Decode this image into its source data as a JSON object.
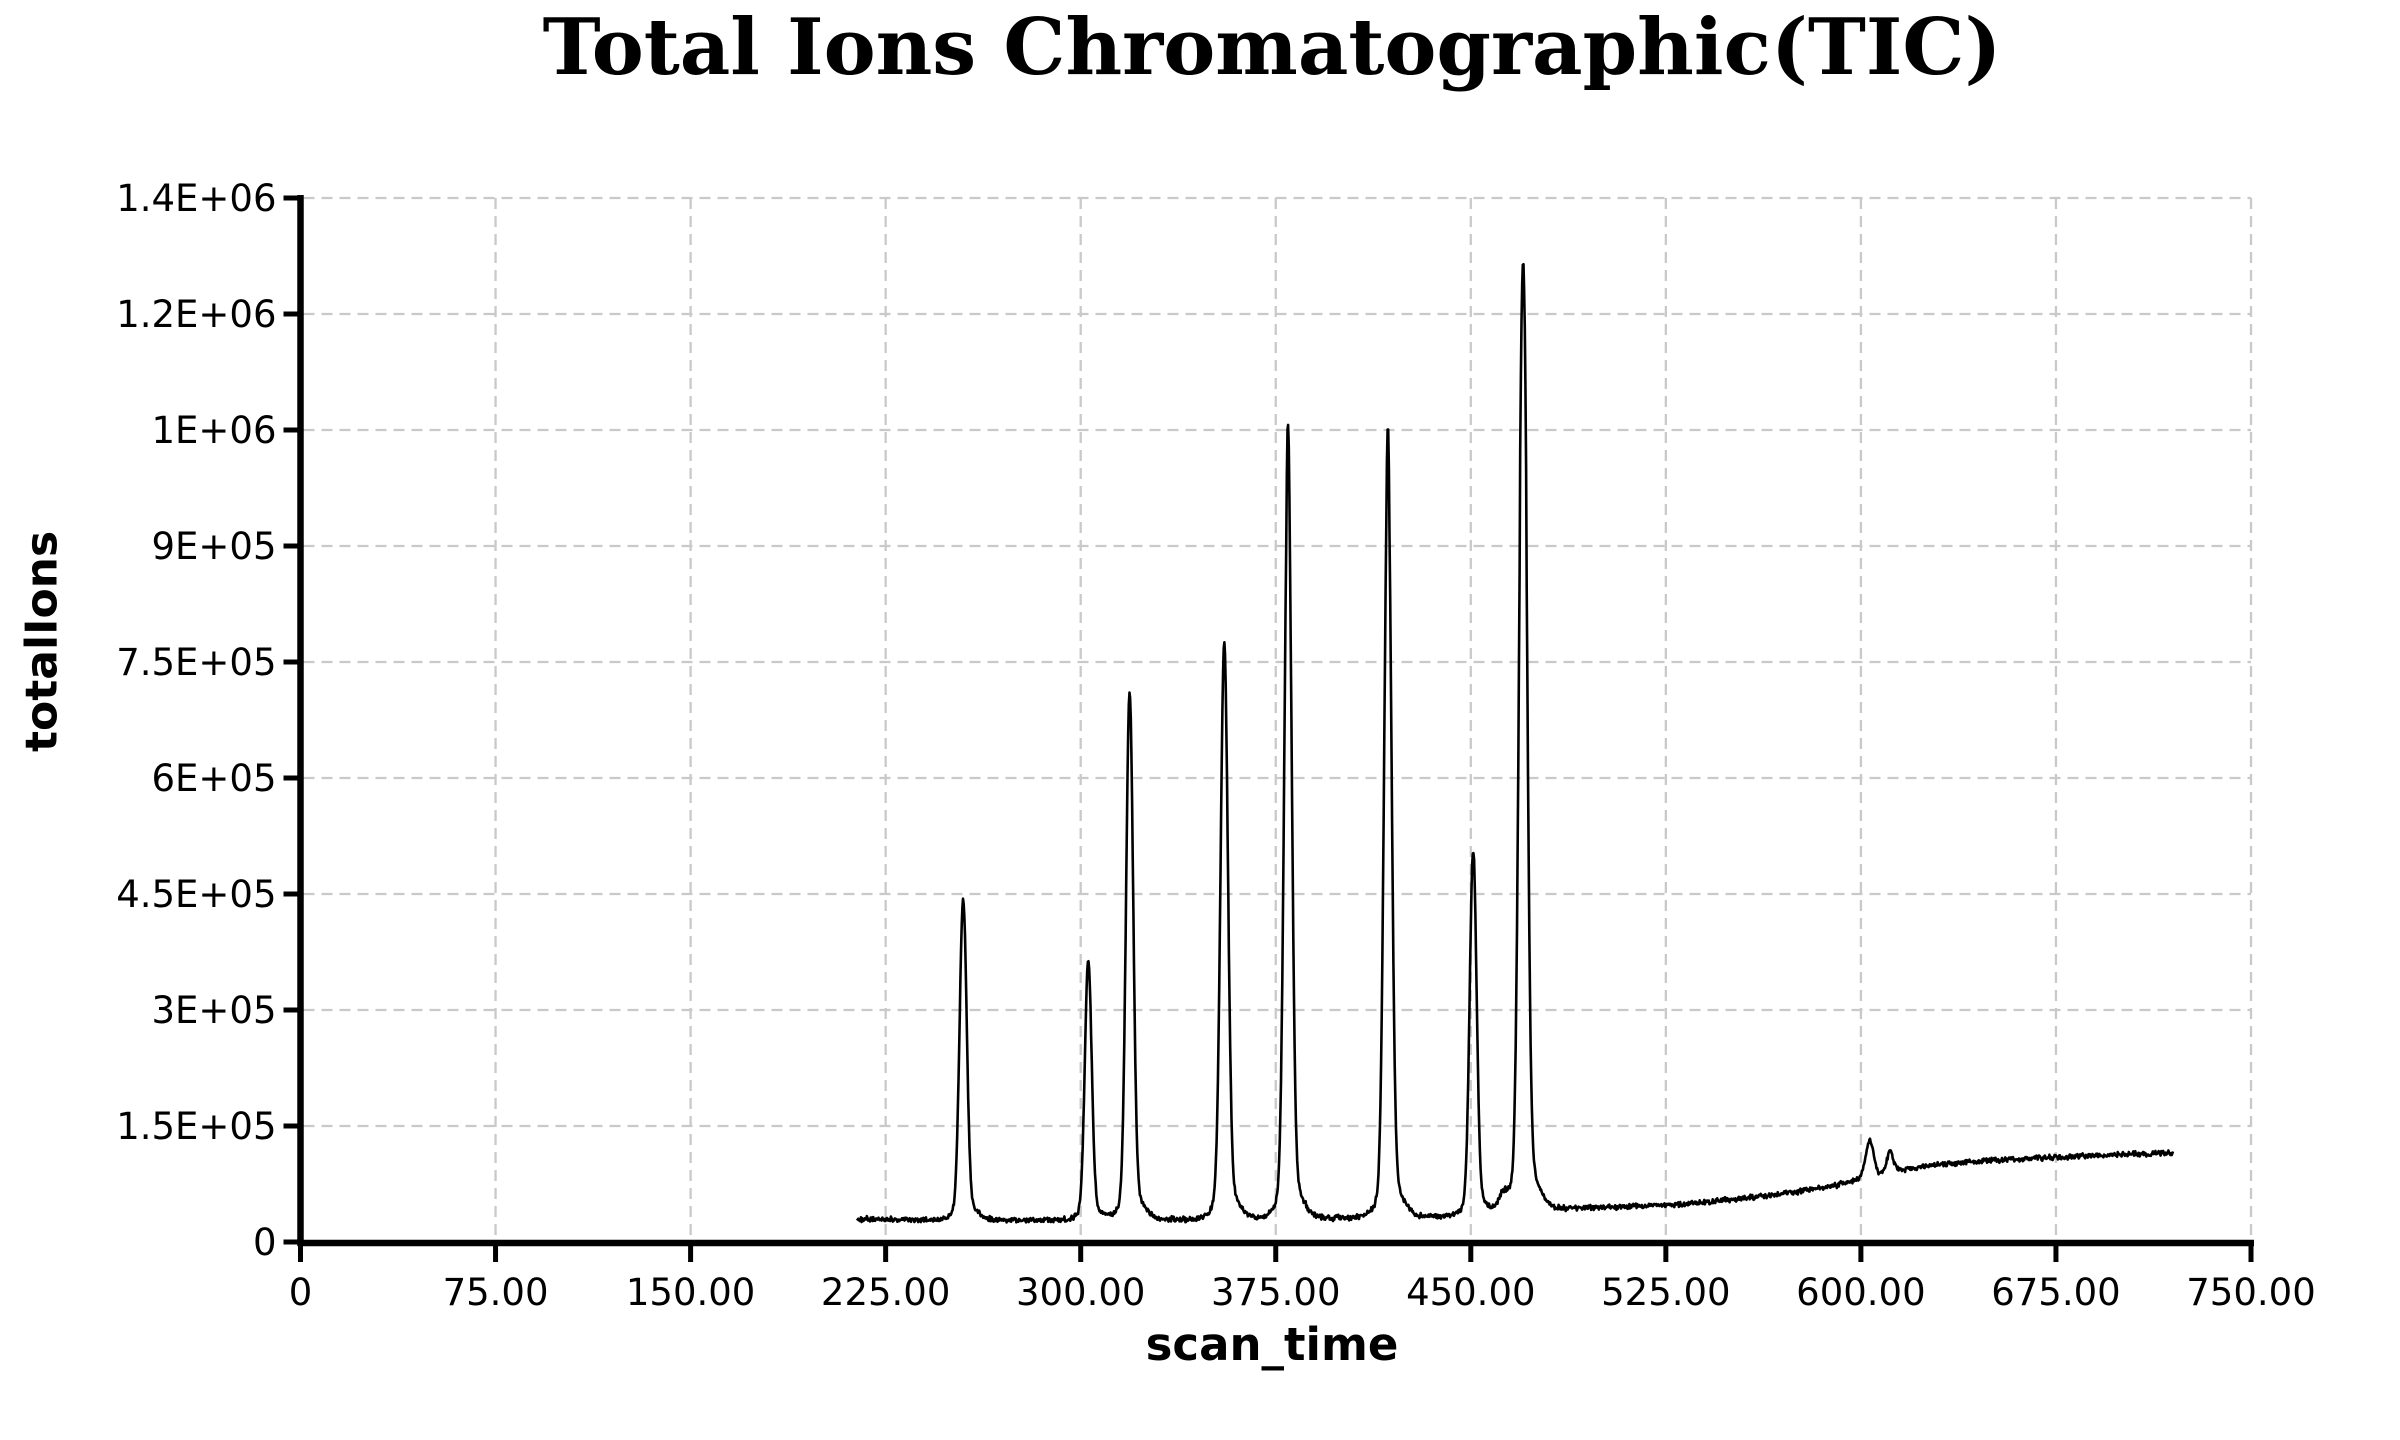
{
  "title": "Total Ions Chromatographic(TIC)",
  "chart_data": {
    "type": "line",
    "title": "Total Ions Chromatographic(TIC)",
    "xlabel": "scan_time",
    "ylabel": "totalIons",
    "legend": "none",
    "grid": "dashed",
    "x_range": [
      0,
      750
    ],
    "x_ticks": [
      {
        "value": 0,
        "label": "0"
      },
      {
        "value": 75,
        "label": "75.00"
      },
      {
        "value": 150,
        "label": "150.00"
      },
      {
        "value": 225,
        "label": "225.00"
      },
      {
        "value": 300,
        "label": "300.00"
      },
      {
        "value": 375,
        "label": "375.00"
      },
      {
        "value": 450,
        "label": "450.00"
      },
      {
        "value": 525,
        "label": "525.00"
      },
      {
        "value": 600,
        "label": "600.00"
      },
      {
        "value": 675,
        "label": "675.00"
      },
      {
        "value": 750,
        "label": "750.00"
      }
    ],
    "y_ticks": [
      {
        "value": 0,
        "label": "0"
      },
      {
        "value": 150000,
        "label": "1.5E+05"
      },
      {
        "value": 300000,
        "label": "3E+05"
      },
      {
        "value": 450000,
        "label": "4.5E+05"
      },
      {
        "value": 600000,
        "label": "6E+05"
      },
      {
        "value": 750000,
        "label": "7.5E+05"
      },
      {
        "value": 900000,
        "label": "9E+05"
      },
      {
        "value": 1000000,
        "label": "1E+06"
      },
      {
        "value": 1200000,
        "label": "1.2E+06"
      },
      {
        "value": 1400000,
        "label": "1.4E+06"
      }
    ],
    "colors": {
      "trace": "#000000",
      "axis": "#000000",
      "grid": "#c9c9c9",
      "text": "#000000",
      "background": "#ffffff"
    },
    "trace": {
      "start": 214,
      "end": 720,
      "step": 0.25,
      "noise_amplitude": 4200,
      "baseline": [
        [
          214,
          30000
        ],
        [
          235,
          28800
        ],
        [
          255,
          28200
        ],
        [
          275,
          28400
        ],
        [
          300,
          28800
        ],
        [
          320,
          29200
        ],
        [
          345,
          29600
        ],
        [
          370,
          30200
        ],
        [
          395,
          31000
        ],
        [
          420,
          32200
        ],
        [
          442,
          33800
        ],
        [
          455,
          36000
        ],
        [
          466,
          38800
        ],
        [
          476,
          42500
        ],
        [
          490,
          44200
        ],
        [
          510,
          45800
        ],
        [
          528,
          48200
        ],
        [
          545,
          53000
        ],
        [
          560,
          58500
        ],
        [
          575,
          65000
        ],
        [
          590,
          73000
        ],
        [
          600,
          80500
        ],
        [
          608,
          87000
        ],
        [
          616,
          93500
        ],
        [
          628,
          99500
        ],
        [
          645,
          104500
        ],
        [
          662,
          107800
        ],
        [
          680,
          110300
        ],
        [
          700,
          112800
        ],
        [
          720,
          115500
        ]
      ],
      "peaks": [
        {
          "scan": 254.8,
          "intensity": 425000,
          "sigma": 1.35
        },
        {
          "scan": 302.9,
          "intensity": 349000,
          "sigma": 1.3
        },
        {
          "scan": 318.8,
          "intensity": 680000,
          "sigma": 1.35
        },
        {
          "scan": 355.2,
          "intensity": 741000,
          "sigma": 1.4
        },
        {
          "scan": 379.7,
          "intensity": 963000,
          "sigma": 1.4
        },
        {
          "scan": 418.1,
          "intensity": 958000,
          "sigma": 1.4
        },
        {
          "scan": 450.9,
          "intensity": 486000,
          "sigma": 1.3
        },
        {
          "scan": 462.4,
          "intensity": 57000,
          "sigma": 1.9
        },
        {
          "scan": 470.1,
          "intensity": 1231000,
          "sigma": 1.45
        },
        {
          "scan": 603.3,
          "intensity": 129000,
          "sigma": 1.5
        },
        {
          "scan": 611.2,
          "intensity": 116000,
          "sigma": 1.2
        }
      ]
    }
  }
}
